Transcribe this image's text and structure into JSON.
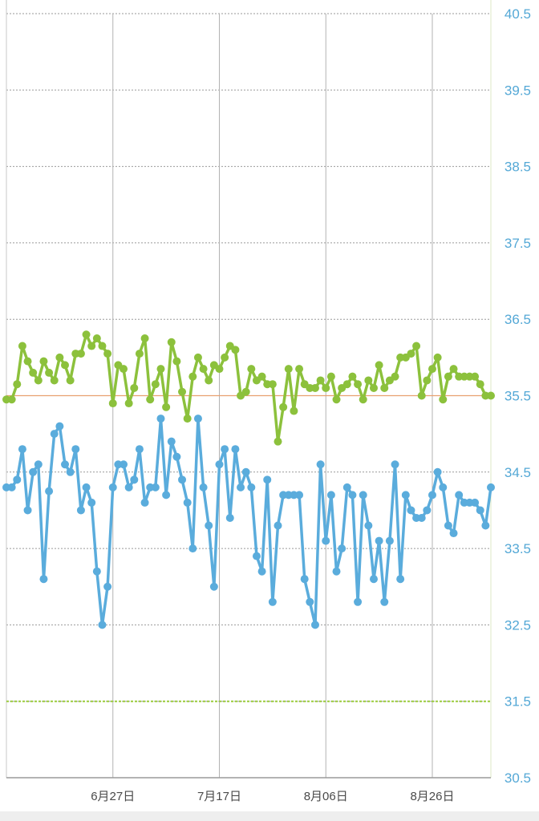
{
  "chart_data": {
    "type": "line",
    "title": "",
    "xlabel": "",
    "ylabel": "",
    "ylim": [
      30.5,
      40.5
    ],
    "yticks": [
      40.5,
      39.5,
      38.5,
      37.5,
      36.5,
      35.5,
      34.5,
      33.5,
      32.5,
      31.5,
      30.5
    ],
    "ytick_labels": [
      "40.5",
      "39.5",
      "38.5",
      "37.5",
      "36.5",
      "35.5",
      "34.5",
      "33.5",
      "32.5",
      "31.5",
      "30.5"
    ],
    "xlim": [
      -20,
      71
    ],
    "xticks": [
      0,
      20,
      40,
      60
    ],
    "xtick_labels": [
      "6月27日",
      "7月17日",
      "8月06日",
      "8月26日"
    ],
    "reference_lines": [
      {
        "value": 35.5,
        "color": "#e8a070",
        "style": "solid"
      },
      {
        "value": 31.5,
        "color": "#9acb3c",
        "style": "dashed"
      }
    ],
    "grid": true,
    "series": [
      {
        "color": "#8cc13c",
        "x": [
          -20,
          -19,
          -18,
          -17,
          -16,
          -15,
          -14,
          -13,
          -12,
          -11,
          -10,
          -9,
          -8,
          -7,
          -6,
          -5,
          -4,
          -3,
          -2,
          -1,
          0,
          1,
          2,
          3,
          4,
          5,
          6,
          7,
          8,
          9,
          10,
          11,
          12,
          13,
          14,
          15,
          16,
          17,
          18,
          19,
          20,
          21,
          22,
          23,
          24,
          25,
          26,
          27,
          28,
          29,
          30,
          31,
          32,
          33,
          34,
          35,
          36,
          37,
          38,
          39,
          40,
          41,
          42,
          43,
          44,
          45,
          46,
          47,
          48,
          49,
          50,
          51,
          52,
          53,
          54,
          55,
          56,
          57,
          58,
          59,
          60,
          61,
          62,
          63,
          64,
          65,
          66,
          67,
          68,
          69,
          70,
          71
        ],
        "values": [
          35.45,
          35.45,
          35.65,
          36.15,
          35.95,
          35.8,
          35.7,
          35.95,
          35.8,
          35.7,
          36.0,
          35.9,
          35.7,
          36.05,
          36.05,
          36.3,
          36.15,
          36.25,
          36.15,
          36.05,
          35.4,
          35.9,
          35.85,
          35.4,
          35.6,
          36.05,
          36.25,
          35.45,
          35.65,
          35.85,
          35.35,
          36.2,
          35.95,
          35.55,
          35.2,
          35.75,
          36.0,
          35.85,
          35.7,
          35.9,
          35.85,
          36.0,
          36.15,
          36.1,
          35.5,
          35.55,
          35.85,
          35.7,
          35.75,
          35.65,
          35.65,
          34.9,
          35.35,
          35.85,
          35.3,
          35.85,
          35.65,
          35.6,
          35.6,
          35.7,
          35.6,
          35.75,
          35.45,
          35.6,
          35.65,
          35.75,
          35.65,
          35.45,
          35.7,
          35.6,
          35.9,
          35.6,
          35.7,
          35.75,
          36.0,
          36.0,
          36.05,
          36.15,
          35.5,
          35.7,
          35.85,
          36.0,
          35.45,
          35.75,
          35.85,
          35.75,
          35.75,
          35.75,
          35.75,
          35.65,
          35.5,
          35.5
        ]
      },
      {
        "color": "#5aacdc",
        "x": [
          -20,
          -19,
          -18,
          -17,
          -16,
          -15,
          -14,
          -13,
          -12,
          -11,
          -10,
          -9,
          -8,
          -7,
          -6,
          -5,
          -4,
          -3,
          -2,
          -1,
          0,
          1,
          2,
          3,
          4,
          5,
          6,
          7,
          8,
          9,
          10,
          11,
          12,
          13,
          14,
          15,
          16,
          17,
          18,
          19,
          20,
          21,
          22,
          23,
          24,
          25,
          26,
          27,
          28,
          29,
          30,
          31,
          32,
          33,
          34,
          35,
          36,
          37,
          38,
          39,
          40,
          41,
          42,
          43,
          44,
          45,
          46,
          47,
          48,
          49,
          50,
          51,
          52,
          53,
          54,
          55,
          56,
          57,
          58,
          59,
          60,
          61,
          62,
          63,
          64,
          65,
          66,
          67,
          68,
          69,
          70,
          71
        ],
        "values": [
          34.3,
          34.3,
          34.4,
          34.8,
          34.0,
          34.5,
          34.6,
          33.1,
          34.25,
          35.0,
          35.1,
          34.6,
          34.5,
          34.8,
          34.0,
          34.3,
          34.1,
          33.2,
          32.5,
          33.0,
          34.3,
          34.6,
          34.6,
          34.3,
          34.4,
          34.8,
          34.1,
          34.3,
          34.3,
          35.2,
          34.2,
          34.9,
          34.7,
          34.4,
          34.1,
          33.5,
          35.2,
          34.3,
          33.8,
          33.0,
          34.6,
          34.8,
          33.9,
          34.8,
          34.3,
          34.5,
          34.3,
          33.4,
          33.2,
          34.4,
          32.8,
          33.8,
          34.2,
          34.2,
          34.2,
          34.2,
          33.1,
          32.8,
          32.5,
          34.6,
          33.6,
          34.2,
          33.2,
          33.5,
          34.3,
          34.2,
          32.8,
          34.2,
          33.8,
          33.1,
          33.6,
          32.8,
          33.6,
          34.6,
          33.1,
          34.2,
          34.0,
          33.9,
          33.9,
          34.0,
          34.2,
          34.5,
          34.3,
          33.8,
          33.7,
          34.2,
          34.1,
          34.1,
          34.1,
          34.0,
          33.8,
          34.3
        ]
      }
    ]
  }
}
